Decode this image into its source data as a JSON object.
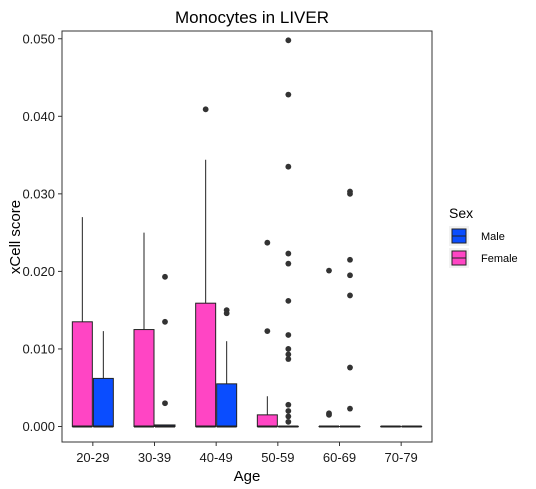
{
  "chart_data": {
    "type": "boxplot",
    "title": "Monocytes in LIVER",
    "xlabel": "Age",
    "ylabel": "xCell score",
    "categories": [
      "20-29",
      "30-39",
      "40-49",
      "50-59",
      "60-69",
      "70-79"
    ],
    "ylim": [
      -0.002,
      0.051
    ],
    "yticks": [
      0.0,
      0.01,
      0.02,
      0.03,
      0.04,
      0.05
    ],
    "ytick_labels": [
      "0.000",
      "0.010",
      "0.020",
      "0.030",
      "0.040",
      "0.050"
    ],
    "grid": false,
    "legend": {
      "title": "Sex",
      "position": "right"
    },
    "series": [
      {
        "name": "Male",
        "color": "#0a4dff",
        "boxes": [
          {
            "category": "20-29",
            "lower_whisker": 0.0,
            "q1": 0.0,
            "median": 0.0,
            "q3": 0.0062,
            "upper_whisker": 0.0123,
            "outliers": []
          },
          {
            "category": "30-39",
            "lower_whisker": 0.0,
            "q1": 0.0,
            "median": 0.0,
            "q3": 0.0002,
            "upper_whisker": 0.0002,
            "outliers": [
              0.0193,
              0.0135,
              0.003
            ]
          },
          {
            "category": "40-49",
            "lower_whisker": 0.0,
            "q1": 0.0,
            "median": 0.0,
            "q3": 0.0055,
            "upper_whisker": 0.011,
            "outliers": [
              0.015,
              0.0146
            ]
          },
          {
            "category": "50-59",
            "lower_whisker": 0.0,
            "q1": 0.0,
            "median": 0.0,
            "q3": 0.0,
            "upper_whisker": 0.0,
            "outliers": [
              0.0498,
              0.0428,
              0.0335,
              0.0223,
              0.021,
              0.0162,
              0.0118,
              0.01,
              0.0093,
              0.0087,
              0.0028,
              0.002,
              0.0013,
              0.0006
            ]
          },
          {
            "category": "60-69",
            "lower_whisker": 0.0,
            "q1": 0.0,
            "median": 0.0,
            "q3": 0.0,
            "upper_whisker": 0.0,
            "outliers": [
              0.0303,
              0.03,
              0.0215,
              0.0195,
              0.0169,
              0.0076,
              0.0023
            ]
          },
          {
            "category": "70-79",
            "lower_whisker": 0.0,
            "q1": 0.0,
            "median": 0.0,
            "q3": 0.0,
            "upper_whisker": 0.0,
            "outliers": []
          }
        ]
      },
      {
        "name": "Female",
        "color": "#ff45c4",
        "boxes": [
          {
            "category": "20-29",
            "lower_whisker": 0.0,
            "q1": 0.0,
            "median": 0.0,
            "q3": 0.0135,
            "upper_whisker": 0.027,
            "outliers": []
          },
          {
            "category": "30-39",
            "lower_whisker": 0.0,
            "q1": 0.0,
            "median": 0.0,
            "q3": 0.0125,
            "upper_whisker": 0.025,
            "outliers": []
          },
          {
            "category": "40-49",
            "lower_whisker": 0.0,
            "q1": 0.0,
            "median": 0.0,
            "q3": 0.0159,
            "upper_whisker": 0.0344,
            "outliers": [
              0.0409
            ]
          },
          {
            "category": "50-59",
            "lower_whisker": 0.0,
            "q1": 0.0,
            "median": 0.0,
            "q3": 0.0015,
            "upper_whisker": 0.0039,
            "outliers": [
              0.0237,
              0.0123
            ]
          },
          {
            "category": "60-69",
            "lower_whisker": 0.0,
            "q1": 0.0,
            "median": 0.0,
            "q3": 0.0,
            "upper_whisker": 0.0,
            "outliers": [
              0.0201,
              0.0017,
              0.0015
            ]
          },
          {
            "category": "70-79",
            "lower_whisker": 0.0,
            "q1": 0.0,
            "median": 0.0,
            "q3": 0.0,
            "upper_whisker": 0.0,
            "outliers": []
          }
        ]
      }
    ]
  }
}
